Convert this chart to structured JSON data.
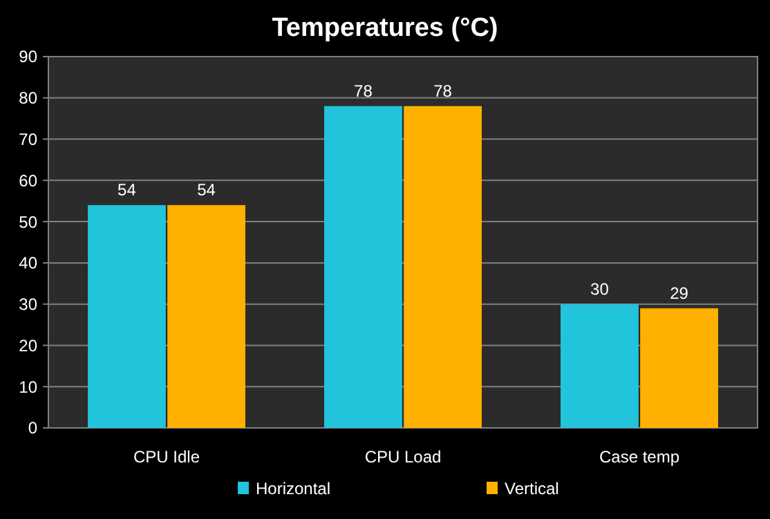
{
  "chart_data": {
    "type": "bar",
    "title": "Temperatures (°C)",
    "categories": [
      "CPU Idle",
      "CPU Load",
      "Case temp"
    ],
    "series": [
      {
        "name": "Horizontal",
        "color": "#22c4dc",
        "values": [
          54,
          78,
          30
        ]
      },
      {
        "name": "Vertical",
        "color": "#ffb000",
        "values": [
          54,
          78,
          29
        ]
      }
    ],
    "ylim": [
      0,
      90
    ],
    "yticks": [
      0,
      10,
      20,
      30,
      40,
      50,
      60,
      70,
      80,
      90
    ],
    "grid": "y",
    "legend": "bottom",
    "data_labels": true
  }
}
